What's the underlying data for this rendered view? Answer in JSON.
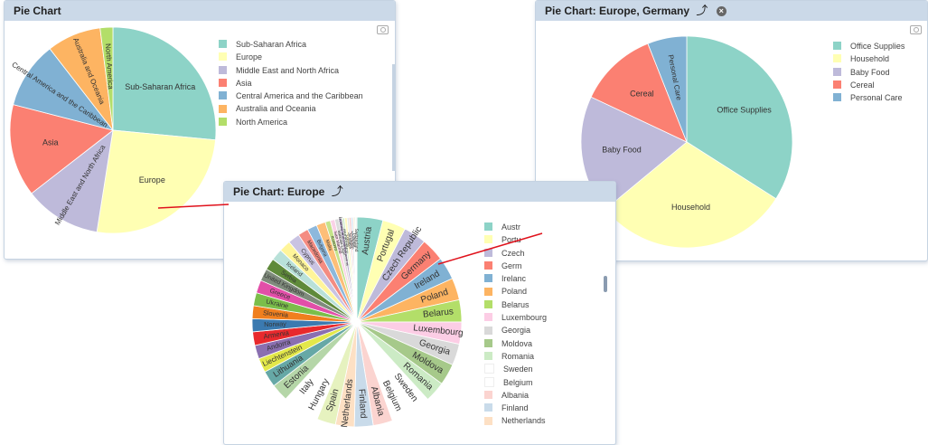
{
  "panels": {
    "main": {
      "title": "Pie Chart"
    },
    "europe": {
      "title": "Pie Chart: Europe",
      "drill_up": "⤴"
    },
    "germany": {
      "title": "Pie Chart: Europe, Germany",
      "drill_up": "⤴",
      "close": "×"
    }
  },
  "icons": {
    "camera": "camera-icon",
    "drill_up": "drill-up-arrow-icon",
    "close": "close-icon"
  },
  "chart_data": [
    {
      "type": "pie",
      "title": "Pie Chart",
      "categories": [
        "Sub-Saharan Africa",
        "Europe",
        "Middle East and North Africa",
        "Asia",
        "Central America and the Caribbean",
        "Australia and Oceania",
        "North America"
      ],
      "values": [
        26.5,
        26.0,
        12.0,
        14.5,
        10.5,
        8.5,
        2.0
      ],
      "colors": [
        "#8dd3c7",
        "#ffffb3",
        "#bebada",
        "#fb8072",
        "#80b1d3",
        "#fdb462",
        "#b3de69"
      ],
      "legend": "right"
    },
    {
      "type": "pie",
      "title": "Pie Chart: Europe",
      "categories": [
        "Austria",
        "Portugal",
        "Czech Republic",
        "Germany",
        "Ireland",
        "Poland",
        "Belarus",
        "Luxembourg",
        "Georgia",
        "Moldova",
        "Romania",
        "Sweden",
        "Belgium",
        "Albania",
        "Finland",
        "Netherlands",
        "Spain",
        "Hungary",
        "Italy",
        "Estonia",
        "Lithuania",
        "Liechtenstein",
        "Andorra",
        "Armenia",
        "Norway",
        "Slovenia",
        "Ukraine",
        "Greece",
        "United Kingdom",
        "Serbia",
        "Iceland",
        "Monaco",
        "Cyprus",
        "Macedonia",
        "Bulgaria",
        "Malta",
        "Kosovo",
        "San Marino",
        "Vatican City",
        "Bosnia and Herzegovina",
        "Montenegro",
        "Latvia",
        "Slovakia",
        "Croatia",
        "Denmark",
        "France",
        "Russia",
        "Switzerland"
      ],
      "values": [
        4.0,
        3.6,
        3.5,
        3.6,
        3.5,
        3.4,
        3.4,
        3.4,
        3.3,
        3.3,
        3.2,
        3.2,
        3.1,
        3.0,
        2.9,
        2.9,
        2.9,
        2.9,
        2.8,
        2.7,
        2.5,
        2.2,
        2.1,
        2.1,
        2.0,
        2.0,
        2.0,
        2.0,
        1.9,
        1.8,
        1.8,
        1.8,
        1.8,
        1.6,
        1.5,
        1.4,
        0.8,
        0.7,
        0.6,
        0.5,
        0.4,
        0.4,
        0.3,
        0.3,
        0.3,
        0.2,
        0.2,
        0.2
      ],
      "colors": [
        "#8dd3c7",
        "#ffffb3",
        "#bebada",
        "#fb8072",
        "#80b1d3",
        "#fdb462",
        "#b3de69",
        "#fccde5",
        "#d9d9d9",
        "#a6c98a",
        "#ccebc5",
        "#ffffff",
        "#ffffff",
        "#fbd4d0",
        "#c9dbea",
        "#fde0c4",
        "#e6f2bf",
        "#ffffff",
        "#ffffff",
        "#b5d6a8",
        "#66a8a6",
        "#e3e84a",
        "#8a6fb0",
        "#e8292d",
        "#3b7ab0",
        "#f07f1e",
        "#7bbe4a",
        "#e24fa8",
        "#7f8b7c",
        "#5f8a3a",
        "#b9e1d9",
        "#fff59a",
        "#c9c3e2",
        "#f48c82",
        "#8db8dc",
        "#fdbe78",
        "#c4e38a",
        "#fad2e6",
        "#dcdcdc",
        "#b9a6cf",
        "#d6edd0",
        "#fff7c0",
        "#e5e5e5",
        "#f6c8c8",
        "#d3e3f0",
        "#fce6d2",
        "#e8f3d6",
        "#f0f0f0"
      ],
      "legend": "right"
    },
    {
      "type": "pie",
      "title": "Pie Chart: Europe, Germany",
      "categories": [
        "Office Supplies",
        "Household",
        "Baby Food",
        "Cereal",
        "Personal Care"
      ],
      "values": [
        34.0,
        30.0,
        18.0,
        12.0,
        6.0
      ],
      "colors": [
        "#8dd3c7",
        "#ffffb3",
        "#bebada",
        "#fb8072",
        "#80b1d3"
      ],
      "legend": "right"
    }
  ],
  "europe_visible_legend": [
    "Austr",
    "Portu",
    "Czech",
    "Germ",
    "Irelanc",
    "Poland",
    "Belarus",
    "Luxembourg",
    "Georgia",
    "Moldova",
    "Romania",
    "Sweden",
    "Belgium",
    "Albania",
    "Finland",
    "Netherlands"
  ]
}
